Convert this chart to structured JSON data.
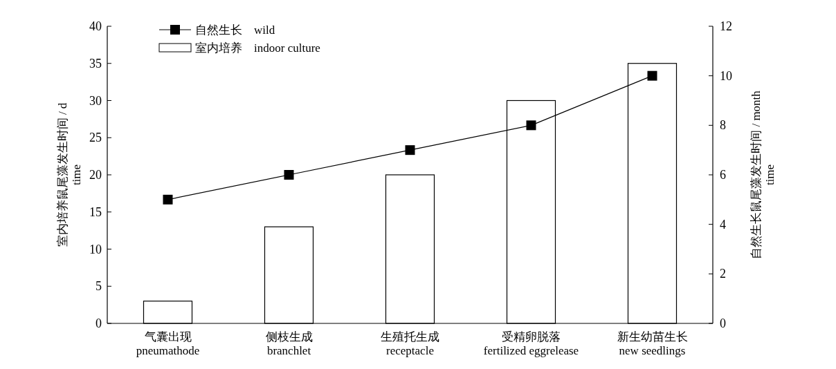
{
  "chart_data": {
    "type": "bar",
    "categories": [
      "气囊出现\npneumathode",
      "侧枝生成\nbranchlet",
      "生殖托生成\nreceptacle",
      "受精卵脱落\nfertilized eggrelease",
      "新生幼苗生长\nnew seedlings"
    ],
    "series": [
      {
        "name": "自然生长　wild",
        "type": "line",
        "axis": "y2",
        "color": "#000000",
        "values": [
          5,
          6,
          7,
          8,
          10
        ]
      },
      {
        "name": "室内培养　indoor culture",
        "color": "#ffffff",
        "values": [
          3,
          13,
          20,
          30,
          35
        ]
      }
    ],
    "ylim": [
      0,
      40
    ],
    "yticks": [
      0,
      5,
      10,
      15,
      20,
      25,
      30,
      35,
      40
    ],
    "y2lim": [
      0,
      12
    ],
    "y2ticks": [
      0,
      2,
      4,
      6,
      8,
      10,
      12
    ],
    "ylabel": "室内培养鼠尾藻发生时间 / d\ntime",
    "y2label": "自然生长鼠尾藻发生时间 / month\ntime",
    "marker": "square",
    "legend": "top left",
    "grid": false
  }
}
